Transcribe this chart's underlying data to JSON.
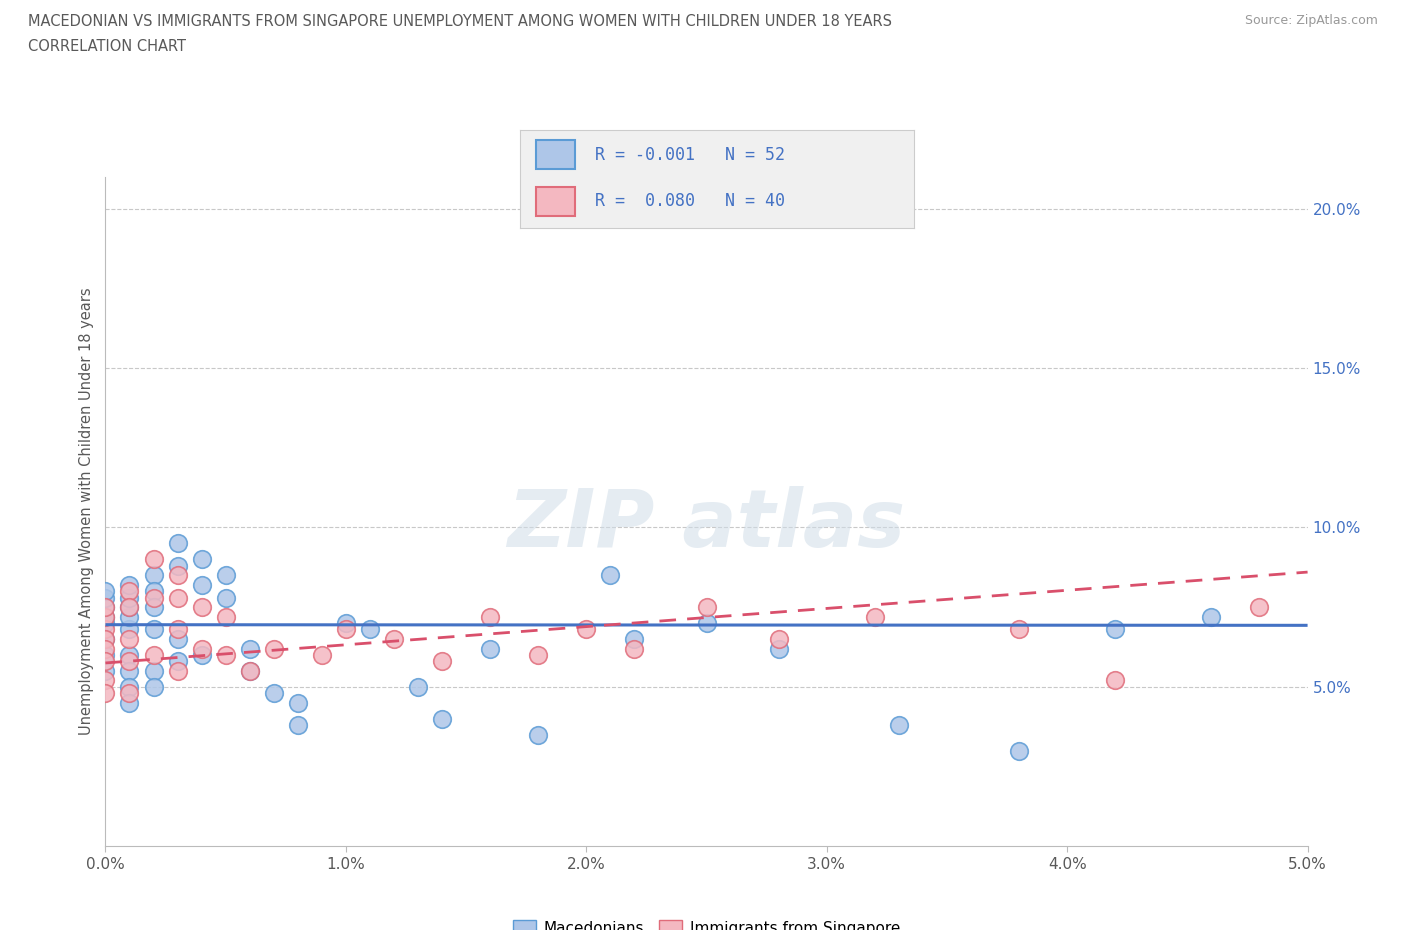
{
  "title_line1": "MACEDONIAN VS IMMIGRANTS FROM SINGAPORE UNEMPLOYMENT AMONG WOMEN WITH CHILDREN UNDER 18 YEARS",
  "title_line2": "CORRELATION CHART",
  "source_text": "Source: ZipAtlas.com",
  "ylabel": "Unemployment Among Women with Children Under 18 years",
  "xlim": [
    0.0,
    0.05
  ],
  "ylim": [
    0.0,
    0.21
  ],
  "xtick_labels": [
    "0.0%",
    "1.0%",
    "2.0%",
    "3.0%",
    "4.0%",
    "5.0%"
  ],
  "xtick_vals": [
    0.0,
    0.01,
    0.02,
    0.03,
    0.04,
    0.05
  ],
  "ytick_labels": [
    "5.0%",
    "10.0%",
    "15.0%",
    "20.0%"
  ],
  "ytick_vals": [
    0.05,
    0.1,
    0.15,
    0.2
  ],
  "macedonian_color": "#aec6e8",
  "macedonian_edge_color": "#5b9bd5",
  "singapore_color": "#f4b8c1",
  "singapore_edge_color": "#e06c7a",
  "trend_blue": "#4472c4",
  "trend_pink": "#d94f6b",
  "background_color": "#ffffff",
  "grid_color": "#c8c8c8",
  "title_color": "#595959",
  "axis_color": "#595959",
  "label_color": "#595959",
  "ytick_color": "#4472c4",
  "macedonian_x": [
    0.0,
    0.0,
    0.0,
    0.0,
    0.0,
    0.0,
    0.0,
    0.0,
    0.001,
    0.001,
    0.001,
    0.001,
    0.001,
    0.001,
    0.001,
    0.001,
    0.001,
    0.002,
    0.002,
    0.002,
    0.002,
    0.002,
    0.002,
    0.003,
    0.003,
    0.003,
    0.003,
    0.004,
    0.004,
    0.004,
    0.005,
    0.005,
    0.006,
    0.006,
    0.007,
    0.008,
    0.008,
    0.01,
    0.011,
    0.013,
    0.014,
    0.016,
    0.018,
    0.021,
    0.022,
    0.025,
    0.028,
    0.033,
    0.038,
    0.042,
    0.046
  ],
  "macedonian_y": [
    0.07,
    0.072,
    0.075,
    0.078,
    0.08,
    0.065,
    0.06,
    0.055,
    0.068,
    0.072,
    0.075,
    0.078,
    0.082,
    0.06,
    0.055,
    0.05,
    0.045,
    0.085,
    0.08,
    0.075,
    0.068,
    0.055,
    0.05,
    0.095,
    0.088,
    0.065,
    0.058,
    0.09,
    0.082,
    0.06,
    0.085,
    0.078,
    0.062,
    0.055,
    0.048,
    0.045,
    0.038,
    0.07,
    0.068,
    0.05,
    0.04,
    0.062,
    0.035,
    0.085,
    0.065,
    0.07,
    0.062,
    0.038,
    0.03,
    0.068,
    0.072
  ],
  "singapore_x": [
    0.0,
    0.0,
    0.0,
    0.0,
    0.0,
    0.0,
    0.0,
    0.0,
    0.001,
    0.001,
    0.001,
    0.001,
    0.001,
    0.002,
    0.002,
    0.002,
    0.003,
    0.003,
    0.003,
    0.003,
    0.004,
    0.004,
    0.005,
    0.005,
    0.006,
    0.007,
    0.009,
    0.01,
    0.012,
    0.014,
    0.016,
    0.018,
    0.02,
    0.022,
    0.025,
    0.028,
    0.032,
    0.038,
    0.042,
    0.048
  ],
  "singapore_y": [
    0.068,
    0.072,
    0.075,
    0.065,
    0.062,
    0.058,
    0.052,
    0.048,
    0.08,
    0.075,
    0.065,
    0.058,
    0.048,
    0.09,
    0.078,
    0.06,
    0.085,
    0.078,
    0.068,
    0.055,
    0.075,
    0.062,
    0.072,
    0.06,
    0.055,
    0.062,
    0.06,
    0.068,
    0.065,
    0.058,
    0.072,
    0.06,
    0.068,
    0.062,
    0.075,
    0.065,
    0.072,
    0.068,
    0.052,
    0.075
  ],
  "mac_trend_y0": 0.0695,
  "mac_trend_y1": 0.0693,
  "sing_trend_y0": 0.0575,
  "sing_trend_y1": 0.086,
  "legend_box_color": "#f0f0f0",
  "legend_box_border": "#cccccc"
}
